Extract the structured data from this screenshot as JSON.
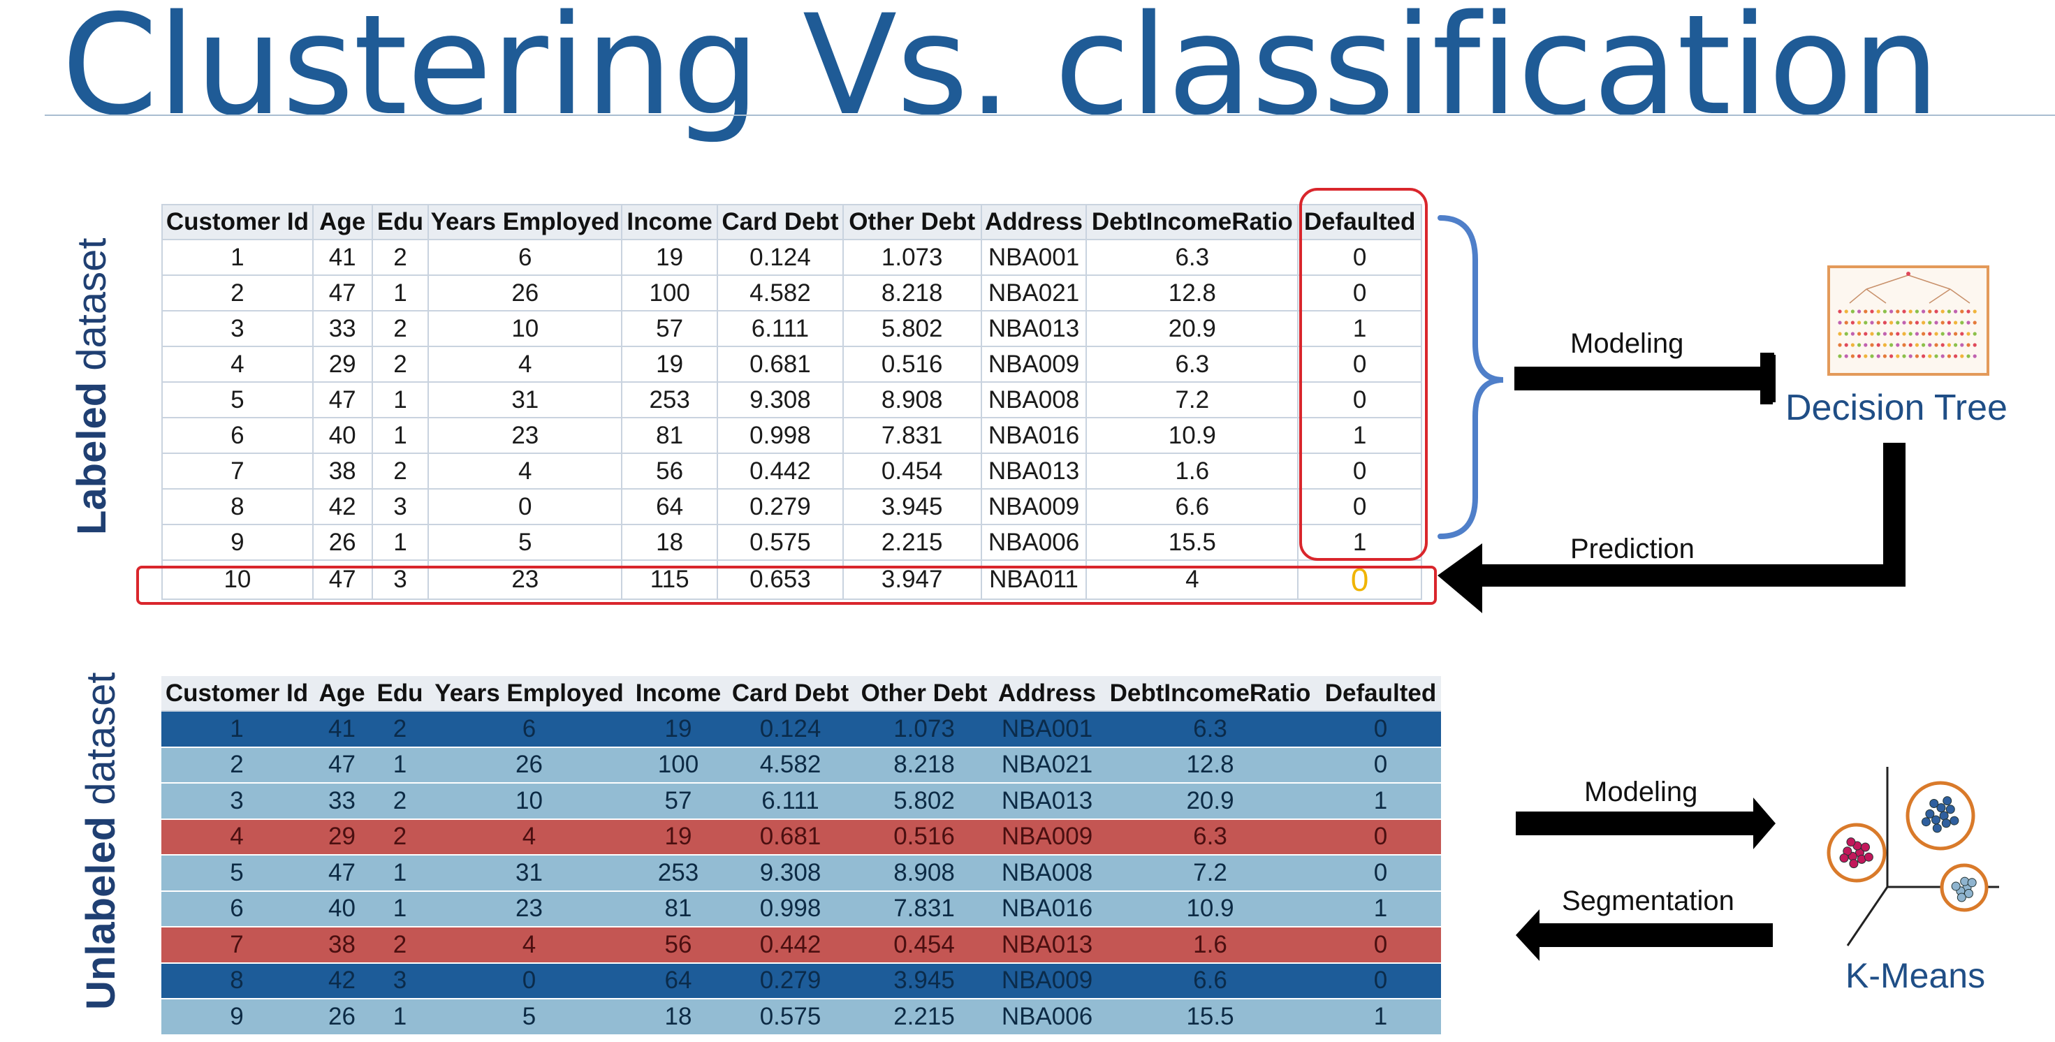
{
  "title": "Clustering Vs. classification",
  "labeled_label": {
    "bold": "Labeled",
    "rest": " dataset"
  },
  "unlabeled_label": {
    "bold": "Unlabeled",
    "rest": " dataset"
  },
  "labeled_table": {
    "headers": [
      "Customer Id",
      "Age",
      "Edu",
      "Years Employed",
      "Income",
      "Card Debt",
      "Other Debt",
      "Address",
      "DebtIncomeRatio",
      "Defaulted"
    ],
    "rows": [
      [
        "1",
        "41",
        "2",
        "6",
        "19",
        "0.124",
        "1.073",
        "NBA001",
        "6.3",
        "0"
      ],
      [
        "2",
        "47",
        "1",
        "26",
        "100",
        "4.582",
        "8.218",
        "NBA021",
        "12.8",
        "0"
      ],
      [
        "3",
        "33",
        "2",
        "10",
        "57",
        "6.111",
        "5.802",
        "NBA013",
        "20.9",
        "1"
      ],
      [
        "4",
        "29",
        "2",
        "4",
        "19",
        "0.681",
        "0.516",
        "NBA009",
        "6.3",
        "0"
      ],
      [
        "5",
        "47",
        "1",
        "31",
        "253",
        "9.308",
        "8.908",
        "NBA008",
        "7.2",
        "0"
      ],
      [
        "6",
        "40",
        "1",
        "23",
        "81",
        "0.998",
        "7.831",
        "NBA016",
        "10.9",
        "1"
      ],
      [
        "7",
        "38",
        "2",
        "4",
        "56",
        "0.442",
        "0.454",
        "NBA013",
        "1.6",
        "0"
      ],
      [
        "8",
        "42",
        "3",
        "0",
        "64",
        "0.279",
        "3.945",
        "NBA009",
        "6.6",
        "0"
      ],
      [
        "9",
        "26",
        "1",
        "5",
        "18",
        "0.575",
        "2.215",
        "NBA006",
        "15.5",
        "1"
      ]
    ],
    "new_row": [
      "10",
      "47",
      "3",
      "23",
      "115",
      "0.653",
      "3.947",
      "NBA011",
      "4",
      "0"
    ]
  },
  "unlabeled_table": {
    "headers": [
      "Customer Id",
      "Age",
      "Edu",
      "Years Employed",
      "Income",
      "Card Debt",
      "Other Debt",
      "Address",
      "DebtIncomeRatio",
      "Defaulted"
    ],
    "rows": [
      {
        "cluster": "dark",
        "cells": [
          "1",
          "41",
          "2",
          "6",
          "19",
          "0.124",
          "1.073",
          "NBA001",
          "6.3",
          "0"
        ]
      },
      {
        "cluster": "light",
        "cells": [
          "2",
          "47",
          "1",
          "26",
          "100",
          "4.582",
          "8.218",
          "NBA021",
          "12.8",
          "0"
        ]
      },
      {
        "cluster": "light",
        "cells": [
          "3",
          "33",
          "2",
          "10",
          "57",
          "6.111",
          "5.802",
          "NBA013",
          "20.9",
          "1"
        ]
      },
      {
        "cluster": "red",
        "cells": [
          "4",
          "29",
          "2",
          "4",
          "19",
          "0.681",
          "0.516",
          "NBA009",
          "6.3",
          "0"
        ]
      },
      {
        "cluster": "light",
        "cells": [
          "5",
          "47",
          "1",
          "31",
          "253",
          "9.308",
          "8.908",
          "NBA008",
          "7.2",
          "0"
        ]
      },
      {
        "cluster": "light",
        "cells": [
          "6",
          "40",
          "1",
          "23",
          "81",
          "0.998",
          "7.831",
          "NBA016",
          "10.9",
          "1"
        ]
      },
      {
        "cluster": "red",
        "cells": [
          "7",
          "38",
          "2",
          "4",
          "56",
          "0.442",
          "0.454",
          "NBA013",
          "1.6",
          "0"
        ]
      },
      {
        "cluster": "dark",
        "cells": [
          "8",
          "42",
          "3",
          "0",
          "64",
          "0.279",
          "3.945",
          "NBA009",
          "6.6",
          "0"
        ]
      },
      {
        "cluster": "light",
        "cells": [
          "9",
          "26",
          "1",
          "5",
          "18",
          "0.575",
          "2.215",
          "NBA006",
          "15.5",
          "1"
        ]
      }
    ]
  },
  "flow": {
    "modeling_top": "Modeling",
    "prediction": "Prediction",
    "modeling_bottom": "Modeling",
    "segmentation": "Segmentation",
    "decision_tree": "Decision Tree",
    "kmeans": "K-Means"
  },
  "colors": {
    "title": "#1f5b96",
    "highlight_box": "#d9262c",
    "brace": "#4f7fc9",
    "prediction_value": "#f0b400",
    "cluster_dark": "#1d5c99",
    "cluster_light": "#93bcd3",
    "cluster_red": "#c45653"
  }
}
